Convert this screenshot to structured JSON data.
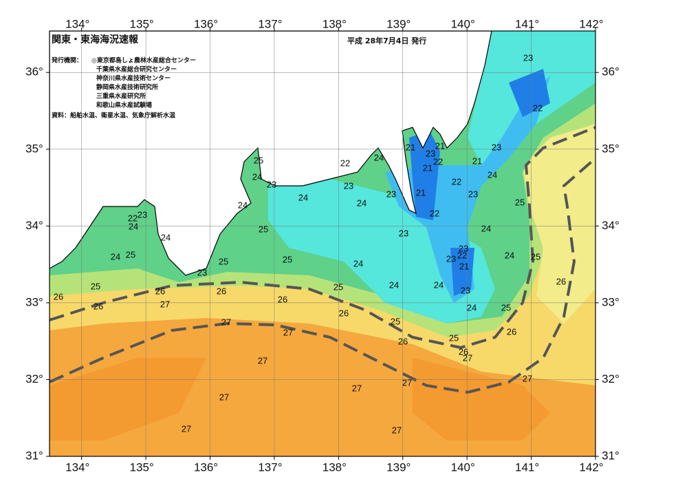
{
  "chart_data": {
    "type": "map",
    "title": "関東・東海海況速報",
    "date": "平成 28年7月4日 発行",
    "issuer_label": "発行機関：",
    "issuers": [
      "◎東京都島しょ農林水産総合センター",
      "千葉県水産総合研究センター",
      "神奈川県水産技術センター",
      "静岡県水産技術研究所",
      "三重県水産研究所",
      "和歌山県水産試験場"
    ],
    "source": "資料：船舶水温、衛星水温、気象庁解析水温",
    "xlim": [
      133.5,
      142
    ],
    "ylim": [
      31,
      36.54
    ],
    "xticks": [
      {
        "value": 134,
        "label": "134°"
      },
      {
        "value": 135,
        "label": "135°"
      },
      {
        "value": 136,
        "label": "136°"
      },
      {
        "value": 137,
        "label": "137°"
      },
      {
        "value": 138,
        "label": "138°"
      },
      {
        "value": 139,
        "label": "139°"
      },
      {
        "value": 140,
        "label": "140°"
      },
      {
        "value": 141,
        "label": "141°"
      },
      {
        "value": 142,
        "label": "142°"
      }
    ],
    "yticks": [
      {
        "value": 31,
        "label": "31°"
      },
      {
        "value": 32,
        "label": "32°"
      },
      {
        "value": 33,
        "label": "33°"
      },
      {
        "value": 34,
        "label": "34°"
      },
      {
        "value": 35,
        "label": "35°"
      },
      {
        "value": 36,
        "label": "36°"
      }
    ],
    "grid": true,
    "contour_labels": [
      23,
      22,
      23,
      24,
      25,
      24,
      24,
      25,
      26,
      25,
      26,
      27,
      26,
      25,
      24,
      23,
      24,
      21,
      23,
      22,
      23,
      24,
      26,
      25,
      26,
      25,
      24,
      23,
      22,
      21,
      23,
      22,
      21,
      22,
      23,
      21,
      21,
      21,
      24,
      22,
      23,
      23,
      24,
      24,
      25,
      25,
      25,
      23,
      26,
      26,
      27,
      27,
      27,
      27,
      27,
      27,
      27,
      27,
      27,
      26,
      27,
      26,
      26,
      25,
      24,
      25,
      24,
      24,
      22,
      23,
      24,
      24,
      25,
      23
    ]
  }
}
